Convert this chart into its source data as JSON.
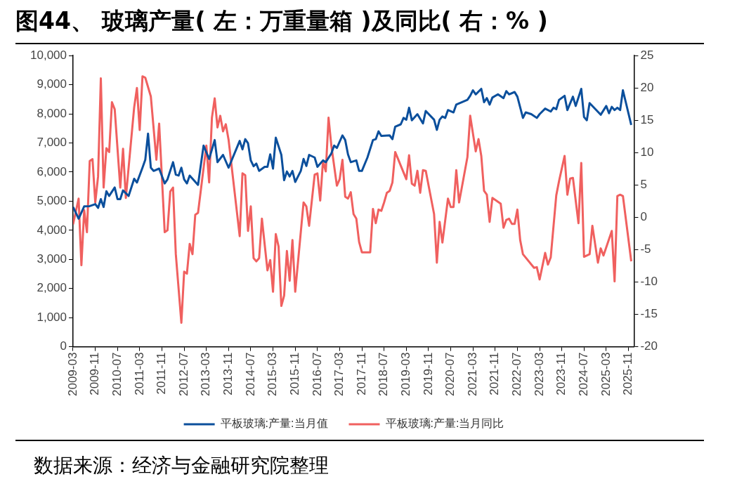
{
  "chart_data": {
    "type": "line",
    "title": "图44、 玻璃产量( 左：万重量箱 )及同比( 右：% )",
    "annotations": [
      "数据来源：经济与金融研究院整理"
    ],
    "xlim": [
      "2009-03",
      "2026-01"
    ],
    "xticks": [
      "2009-03",
      "2009-11",
      "2010-07",
      "2011-03",
      "2011-11",
      "2012-07",
      "2013-03",
      "2013-11",
      "2014-07",
      "2015-03",
      "2015-11",
      "2016-07",
      "2017-03",
      "2017-11",
      "2018-07",
      "2019-03",
      "2019-11",
      "2020-07",
      "2021-03",
      "2021-11",
      "2022-07",
      "2023-03",
      "2023-11",
      "2024-07",
      "2025-03",
      "2025-11"
    ],
    "ylim": [
      0,
      10000
    ],
    "yticks": [
      0,
      {
        "value": 1000,
        "label": "1,000"
      },
      {
        "value": 2000,
        "label": "2,000"
      },
      {
        "value": 3000,
        "label": "3,000"
      },
      {
        "value": 4000,
        "label": "4,000"
      },
      {
        "value": 5000,
        "label": "5,000"
      },
      {
        "value": 6000,
        "label": "6,000"
      },
      {
        "value": 7000,
        "label": "7,000"
      },
      {
        "value": 8000,
        "label": "8,000"
      },
      {
        "value": 9000,
        "label": "9,000"
      },
      {
        "value": 10000,
        "label": "10,000"
      }
    ],
    "y2lim": [
      -20,
      25
    ],
    "y2ticks": [
      -20,
      -15,
      -10,
      -5,
      0,
      5,
      10,
      15,
      20,
      25
    ],
    "grid": false,
    "legend": "bottom",
    "marker": "none",
    "series": [
      {
        "name": "平板玻璃:产量:当月值",
        "color": "#0b4f9c",
        "axis": "y",
        "x": [
          "2009-03",
          "2009-05",
          "2009-07",
          "2009-09",
          "2009-11",
          "2009-12",
          "2010-01",
          "2010-02",
          "2010-03",
          "2010-04",
          "2010-06",
          "2010-07",
          "2010-08",
          "2010-09",
          "2010-11",
          "2011-01",
          "2011-02",
          "2011-04",
          "2011-05",
          "2011-06",
          "2011-07",
          "2011-08",
          "2011-10",
          "2011-12",
          "2012-01",
          "2012-03",
          "2012-04",
          "2012-05",
          "2012-06",
          "2012-07",
          "2012-08",
          "2012-09",
          "2012-12",
          "2013-02",
          "2013-04",
          "2013-06",
          "2013-07",
          "2013-09",
          "2013-11",
          "2014-03",
          "2014-04",
          "2014-05",
          "2014-06",
          "2014-07",
          "2014-08",
          "2014-09",
          "2014-10",
          "2014-12",
          "2015-01",
          "2015-02",
          "2015-03",
          "2015-04",
          "2015-06",
          "2015-07",
          "2015-08",
          "2015-09",
          "2015-10",
          "2015-11",
          "2016-01",
          "2016-02",
          "2016-03",
          "2016-04",
          "2016-06",
          "2016-07",
          "2016-09",
          "2016-10",
          "2016-12",
          "2017-01",
          "2017-02",
          "2017-04",
          "2017-05",
          "2017-06",
          "2017-07",
          "2017-09",
          "2017-10",
          "2017-11",
          "2018-01",
          "2018-03",
          "2018-04",
          "2018-05",
          "2018-06",
          "2018-09",
          "2018-10",
          "2018-11",
          "2019-01",
          "2019-02",
          "2019-03",
          "2019-04",
          "2019-05",
          "2019-07",
          "2019-09",
          "2019-10",
          "2020-01",
          "2020-02",
          "2020-03",
          "2020-04",
          "2020-05",
          "2020-06",
          "2020-08",
          "2020-09",
          "2021-01",
          "2021-02",
          "2021-03",
          "2021-04",
          "2021-06",
          "2021-07",
          "2021-08",
          "2021-09",
          "2021-10",
          "2021-12",
          "2022-02",
          "2022-03",
          "2022-04",
          "2022-06",
          "2022-07",
          "2022-09",
          "2022-10",
          "2022-12",
          "2023-02",
          "2023-03",
          "2023-05",
          "2023-07",
          "2023-08",
          "2023-09",
          "2023-10",
          "2023-12",
          "2024-01",
          "2024-03",
          "2024-04",
          "2024-06",
          "2024-07",
          "2024-08",
          "2024-09",
          "2025-01",
          "2025-03",
          "2025-04",
          "2025-05",
          "2025-06",
          "2025-07",
          "2025-08",
          "2025-09",
          "2025-12"
        ],
        "values": [
          4800,
          4400,
          4820,
          4830,
          4900,
          4770,
          5070,
          4800,
          5340,
          5180,
          5470,
          5070,
          5070,
          5370,
          5180,
          5770,
          5640,
          6150,
          6420,
          7320,
          6150,
          6040,
          6120,
          5610,
          5750,
          6340,
          5910,
          5880,
          6150,
          5750,
          5610,
          5880,
          5560,
          6910,
          6450,
          7100,
          6340,
          6590,
          6150,
          7070,
          6780,
          7130,
          6990,
          6400,
          6200,
          6290,
          6040,
          6180,
          6180,
          6610,
          6120,
          7180,
          6590,
          5720,
          6020,
          5850,
          6040,
          5660,
          6040,
          6450,
          6210,
          6590,
          6500,
          6180,
          6400,
          6340,
          6640,
          6910,
          6830,
          7260,
          7100,
          6610,
          6340,
          6400,
          6040,
          6040,
          6500,
          7100,
          7130,
          7400,
          7240,
          7260,
          7130,
          7560,
          7640,
          7860,
          7800,
          8210,
          7780,
          7990,
          7670,
          8100,
          7800,
          7450,
          7800,
          7910,
          7860,
          8130,
          8050,
          8320,
          8480,
          8620,
          8810,
          8670,
          8860,
          8400,
          8540,
          8320,
          8560,
          8670,
          8540,
          8780,
          8670,
          8750,
          8590,
          7860,
          8050,
          7990,
          7860,
          7990,
          8180,
          8080,
          8210,
          8160,
          8480,
          8620,
          8130,
          8590,
          8270,
          8860,
          7890,
          7780,
          8370,
          7970,
          8270,
          8020,
          8240,
          8130,
          8210,
          8130,
          8810,
          7620
        ]
      },
      {
        "name": "平板玻璃:产量:当月同比",
        "color": "#f0605f",
        "axis": "y2",
        "x": [
          "2009-03",
          "2009-05",
          "2009-06",
          "2009-07",
          "2009-08",
          "2009-09",
          "2009-10",
          "2009-11",
          "2009-12",
          "2010-01",
          "2010-02",
          "2010-03",
          "2010-04",
          "2010-05",
          "2010-06",
          "2010-08",
          "2010-09",
          "2010-10",
          "2011-01",
          "2011-02",
          "2011-03",
          "2011-04",
          "2011-05",
          "2011-07",
          "2011-09",
          "2011-10",
          "2011-12",
          "2012-01",
          "2012-02",
          "2012-03",
          "2012-04",
          "2012-06",
          "2012-07",
          "2012-08",
          "2012-09",
          "2012-10",
          "2012-11",
          "2012-12",
          "2013-03",
          "2013-04",
          "2013-05",
          "2013-06",
          "2013-07",
          "2013-08",
          "2013-09",
          "2013-10",
          "2013-11",
          "2014-03",
          "2014-04",
          "2014-05",
          "2014-06",
          "2014-07",
          "2014-08",
          "2014-09",
          "2014-10",
          "2014-11",
          "2015-01",
          "2015-02",
          "2015-03",
          "2015-04",
          "2015-05",
          "2015-06",
          "2015-07",
          "2015-08",
          "2015-09",
          "2015-10",
          "2015-11",
          "2016-02",
          "2016-03",
          "2016-04",
          "2016-06",
          "2016-07",
          "2016-08",
          "2016-09",
          "2016-10",
          "2016-11",
          "2016-12",
          "2017-02",
          "2017-03",
          "2017-04",
          "2017-05",
          "2017-06",
          "2017-07",
          "2017-08",
          "2017-09",
          "2017-10",
          "2017-11",
          "2018-02",
          "2018-03",
          "2018-04",
          "2018-05",
          "2018-06",
          "2018-07",
          "2018-08",
          "2018-09",
          "2018-10",
          "2018-11",
          "2019-03",
          "2019-04",
          "2019-05",
          "2019-06",
          "2019-07",
          "2019-08",
          "2019-09",
          "2019-10",
          "2020-01",
          "2020-02",
          "2020-03",
          "2020-04",
          "2020-06",
          "2020-07",
          "2020-08",
          "2020-09",
          "2020-10",
          "2021-01",
          "2021-02",
          "2021-04",
          "2021-05",
          "2021-06",
          "2021-07",
          "2021-08",
          "2021-09",
          "2021-10",
          "2022-01",
          "2022-02",
          "2022-03",
          "2022-04",
          "2022-05",
          "2022-06",
          "2022-07",
          "2022-08",
          "2022-09",
          "2023-01",
          "2023-02",
          "2023-03",
          "2023-05",
          "2023-06",
          "2023-07",
          "2023-09",
          "2023-10",
          "2023-12",
          "2024-01",
          "2024-02",
          "2024-03",
          "2024-05",
          "2024-06",
          "2024-07",
          "2024-09",
          "2024-10",
          "2024-12",
          "2025-01",
          "2025-02",
          "2025-05",
          "2025-06",
          "2025-07",
          "2025-08",
          "2025-09",
          "2025-12"
        ],
        "values": [
          -1.1,
          2.9,
          -7.4,
          1.1,
          -2.3,
          8.7,
          9.0,
          2.3,
          6.3,
          21.5,
          4.6,
          10.7,
          10.1,
          17.8,
          16.7,
          4.6,
          10.6,
          3.0,
          17.0,
          20.0,
          13.5,
          21.8,
          21.6,
          18.7,
          8.9,
          14.5,
          -2.3,
          -2.0,
          4.0,
          4.6,
          -5.7,
          -16.3,
          -8.4,
          -8.7,
          -4.1,
          -5.7,
          0.4,
          0.7,
          11.1,
          5.4,
          15.4,
          18.4,
          13.9,
          15.7,
          13.3,
          14.4,
          12.0,
          -2.9,
          6.8,
          6.5,
          -2.1,
          1.7,
          -6.3,
          -6.8,
          -6.3,
          -0.2,
          -8.2,
          -6.6,
          -11.5,
          -2.6,
          -4.5,
          -13.7,
          -12.1,
          -5.2,
          -9.8,
          -3.5,
          -11.5,
          2.3,
          1.7,
          -1.3,
          6.6,
          6.8,
          2.6,
          8.7,
          7.1,
          15.4,
          11.1,
          4.9,
          5.9,
          8.9,
          3.2,
          2.9,
          3.9,
          0.5,
          -0.2,
          -3.8,
          -5.4,
          -5.4,
          1.3,
          -0.9,
          1.2,
          1.0,
          2.3,
          3.8,
          4.1,
          5.4,
          10.1,
          5.9,
          9.6,
          5.2,
          4.9,
          7.2,
          3.8,
          7.3,
          7.2,
          0.5,
          -7.0,
          -0.7,
          -3.9,
          2.9,
          1.6,
          1.6,
          7.3,
          2.3,
          9.3,
          15.7,
          10.2,
          12.1,
          9.5,
          4.1,
          3.5,
          -0.7,
          3.0,
          2.1,
          -1.6,
          -0.4,
          -0.2,
          -1.0,
          -1.0,
          1.2,
          -3.5,
          -5.7,
          -7.8,
          -7.7,
          -9.6,
          -5.5,
          -7.3,
          -6.2,
          3.4,
          5.6,
          9.5,
          3.5,
          6.0,
          6.1,
          -0.9,
          8.4,
          -6.1,
          -5.7,
          -1.3,
          -7.0,
          -4.8,
          -5.9,
          -2.1,
          -9.9,
          3.3,
          3.5,
          3.3,
          -6.8
        ]
      }
    ]
  }
}
